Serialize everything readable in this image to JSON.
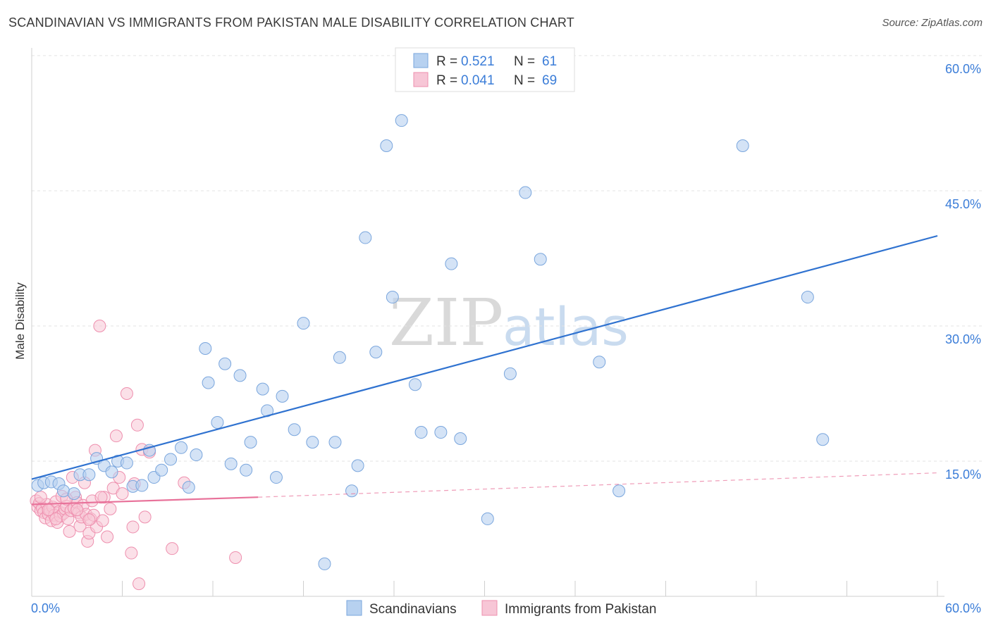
{
  "title": "SCANDINAVIAN VS IMMIGRANTS FROM PAKISTAN MALE DISABILITY CORRELATION CHART",
  "source": "Source: ZipAtlas.com",
  "watermark": {
    "zip": "ZIP",
    "atlas": "atlas"
  },
  "colors": {
    "blue_fill": "#b7d1f0",
    "blue_stroke": "#7aa6dd",
    "blue_line": "#2f72d0",
    "pink_fill": "#f7c6d6",
    "pink_stroke": "#ee8fae",
    "pink_line": "#e8729a",
    "grid": "#e3e3e3",
    "axis_label": "#3b7dd8"
  },
  "legend_top": {
    "rows": [
      {
        "r_label": "R =",
        "r_value": "0.521",
        "n_label": "N =",
        "n_value": "61",
        "series": "blue"
      },
      {
        "r_label": "R =",
        "r_value": "0.041",
        "n_label": "N =",
        "n_value": "69",
        "series": "pink"
      }
    ]
  },
  "legend_bottom": [
    "Scandinavians",
    "Immigrants from Pakistan"
  ],
  "chart_data": {
    "type": "scatter",
    "title": "SCANDINAVIAN VS IMMIGRANTS FROM PAKISTAN MALE DISABILITY CORRELATION CHART",
    "xlabel": "",
    "ylabel": "Male Disability",
    "xlim": [
      0,
      60
    ],
    "ylim": [
      0,
      60
    ],
    "x_tick_labels": [
      "0.0%",
      "60.0%"
    ],
    "y_tick_labels": [
      {
        "value": 15,
        "label": "15.0%"
      },
      {
        "value": 30,
        "label": "30.0%"
      },
      {
        "value": 45,
        "label": "45.0%"
      },
      {
        "value": 60,
        "label": "60.0%"
      }
    ],
    "series": [
      {
        "name": "Scandinavians",
        "color": "blue",
        "r": 0.521,
        "n": 61,
        "trend": {
          "x0": 0,
          "y0": 13.0,
          "x1": 60,
          "y1": 40.0,
          "style": "solid"
        },
        "points": [
          [
            0.4,
            12.3
          ],
          [
            0.8,
            12.6
          ],
          [
            1.3,
            12.7
          ],
          [
            1.8,
            12.5
          ],
          [
            2.1,
            11.7
          ],
          [
            2.8,
            11.4
          ],
          [
            3.2,
            13.5
          ],
          [
            3.8,
            13.5
          ],
          [
            4.3,
            15.3
          ],
          [
            4.8,
            14.5
          ],
          [
            5.3,
            13.8
          ],
          [
            5.7,
            15.0
          ],
          [
            6.3,
            14.8
          ],
          [
            6.7,
            12.2
          ],
          [
            7.3,
            12.3
          ],
          [
            7.8,
            16.2
          ],
          [
            8.1,
            13.2
          ],
          [
            8.6,
            14.0
          ],
          [
            9.2,
            15.2
          ],
          [
            9.9,
            16.5
          ],
          [
            10.4,
            12.1
          ],
          [
            10.9,
            15.7
          ],
          [
            11.5,
            27.5
          ],
          [
            11.7,
            23.7
          ],
          [
            12.3,
            19.3
          ],
          [
            12.8,
            25.8
          ],
          [
            13.2,
            14.7
          ],
          [
            13.8,
            24.5
          ],
          [
            14.2,
            14.0
          ],
          [
            14.5,
            17.1
          ],
          [
            15.3,
            23.0
          ],
          [
            15.6,
            20.6
          ],
          [
            16.2,
            13.2
          ],
          [
            16.6,
            22.2
          ],
          [
            17.4,
            18.5
          ],
          [
            18.0,
            30.3
          ],
          [
            18.6,
            17.1
          ],
          [
            19.4,
            3.6
          ],
          [
            20.1,
            17.1
          ],
          [
            20.4,
            26.5
          ],
          [
            21.2,
            11.7
          ],
          [
            21.6,
            14.5
          ],
          [
            22.1,
            39.8
          ],
          [
            22.8,
            27.1
          ],
          [
            23.5,
            50.0
          ],
          [
            23.9,
            33.2
          ],
          [
            24.5,
            52.8
          ],
          [
            25.4,
            23.5
          ],
          [
            25.8,
            18.2
          ],
          [
            27.1,
            18.2
          ],
          [
            27.8,
            36.9
          ],
          [
            28.4,
            17.5
          ],
          [
            30.2,
            8.6
          ],
          [
            31.7,
            24.7
          ],
          [
            32.7,
            44.8
          ],
          [
            33.7,
            37.4
          ],
          [
            37.6,
            26.0
          ],
          [
            38.9,
            11.7
          ],
          [
            47.1,
            50.0
          ],
          [
            51.4,
            33.2
          ],
          [
            52.4,
            17.4
          ]
        ]
      },
      {
        "name": "Immigrants from Pakistan",
        "color": "pink",
        "r": 0.041,
        "n": 69,
        "trend": {
          "x0": 0,
          "y0": 10.2,
          "x1": 15,
          "y1": 11.0,
          "x2": 60,
          "y2": 13.7,
          "style": "solid-then-dashed"
        },
        "points": [
          [
            0.3,
            10.6
          ],
          [
            0.4,
            9.9
          ],
          [
            0.5,
            10.3
          ],
          [
            0.6,
            9.5
          ],
          [
            0.7,
            9.8
          ],
          [
            0.8,
            9.3
          ],
          [
            0.9,
            8.7
          ],
          [
            1.0,
            10.2
          ],
          [
            1.1,
            9.1
          ],
          [
            1.2,
            9.6
          ],
          [
            1.3,
            8.4
          ],
          [
            1.4,
            9.9
          ],
          [
            1.5,
            9.0
          ],
          [
            1.6,
            10.5
          ],
          [
            1.7,
            8.2
          ],
          [
            1.8,
            9.4
          ],
          [
            1.9,
            8.9
          ],
          [
            2.0,
            11.1
          ],
          [
            2.1,
            9.2
          ],
          [
            2.2,
            9.7
          ],
          [
            2.3,
            10.0
          ],
          [
            2.4,
            8.6
          ],
          [
            2.5,
            7.2
          ],
          [
            2.6,
            9.5
          ],
          [
            2.7,
            13.2
          ],
          [
            2.8,
            9.8
          ],
          [
            2.9,
            11.0
          ],
          [
            3.0,
            10.4
          ],
          [
            3.1,
            9.3
          ],
          [
            3.2,
            7.8
          ],
          [
            3.3,
            8.8
          ],
          [
            3.4,
            10.1
          ],
          [
            3.5,
            12.6
          ],
          [
            3.6,
            9.1
          ],
          [
            3.7,
            6.1
          ],
          [
            3.8,
            7.0
          ],
          [
            3.9,
            8.6
          ],
          [
            4.0,
            10.6
          ],
          [
            4.1,
            9.0
          ],
          [
            4.2,
            16.2
          ],
          [
            4.3,
            7.7
          ],
          [
            4.5,
            30.0
          ],
          [
            4.7,
            8.4
          ],
          [
            4.8,
            11.0
          ],
          [
            5.0,
            6.6
          ],
          [
            5.2,
            9.7
          ],
          [
            5.4,
            12.0
          ],
          [
            5.6,
            17.8
          ],
          [
            5.8,
            13.2
          ],
          [
            6.0,
            11.4
          ],
          [
            6.3,
            22.5
          ],
          [
            6.6,
            4.8
          ],
          [
            6.7,
            7.7
          ],
          [
            6.8,
            12.5
          ],
          [
            7.0,
            19.0
          ],
          [
            7.1,
            1.4
          ],
          [
            7.3,
            16.3
          ],
          [
            7.5,
            8.8
          ],
          [
            7.8,
            16.0
          ],
          [
            9.3,
            5.3
          ],
          [
            10.1,
            12.6
          ],
          [
            13.5,
            4.3
          ],
          [
            0.6,
            11.0
          ],
          [
            1.1,
            9.6
          ],
          [
            1.6,
            8.6
          ],
          [
            2.3,
            10.8
          ],
          [
            3.0,
            9.6
          ],
          [
            3.8,
            8.5
          ],
          [
            4.6,
            11.0
          ]
        ]
      }
    ]
  }
}
